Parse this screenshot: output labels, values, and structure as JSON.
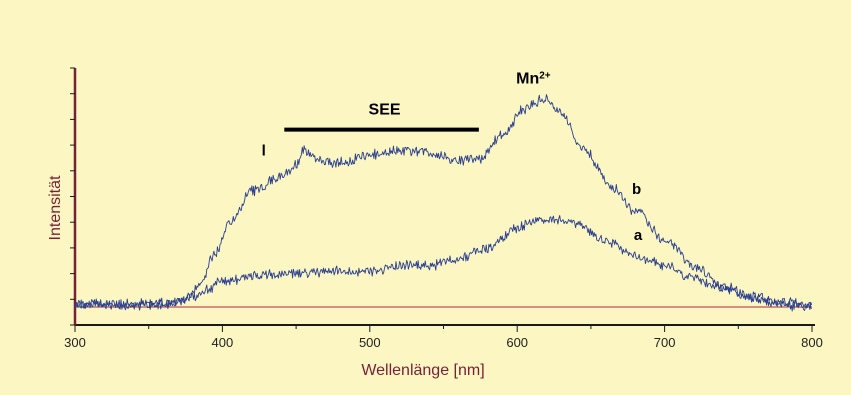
{
  "chart_data": {
    "type": "line",
    "title": "",
    "xlabel": "Wellenlänge [nm]",
    "ylabel": "Intensität",
    "xlim": [
      300,
      800
    ],
    "xticks": [
      300,
      400,
      500,
      600,
      700,
      800
    ],
    "ylim": [
      0,
      100
    ],
    "y_tick_count": 11,
    "baseline_y": 7,
    "grid": false,
    "legend": "none",
    "series": [
      {
        "name": "a",
        "color": "#2b3f8f",
        "x": [
          300,
          350,
          370,
          380,
          390,
          400,
          420,
          450,
          480,
          500,
          520,
          540,
          560,
          580,
          600,
          615,
          625,
          640,
          660,
          680,
          700,
          720,
          740,
          760,
          780,
          800
        ],
        "y": [
          8,
          8,
          9,
          11,
          14,
          17,
          19,
          20,
          21,
          21,
          23,
          23,
          26,
          30,
          38,
          41,
          41,
          39,
          33,
          27,
          23,
          18,
          14,
          11,
          9,
          8
        ]
      },
      {
        "name": "b",
        "color": "#2b3f8f",
        "x": [
          300,
          360,
          375,
          385,
          395,
          405,
          420,
          440,
          450,
          455,
          465,
          480,
          500,
          520,
          540,
          560,
          575,
          590,
          605,
          618,
          630,
          645,
          665,
          680,
          700,
          720,
          740,
          760,
          780,
          800
        ],
        "y": [
          8,
          8,
          10,
          16,
          28,
          40,
          52,
          58,
          62,
          68,
          64,
          63,
          66,
          68,
          67,
          64,
          65,
          74,
          84,
          88,
          82,
          68,
          53,
          44,
          33,
          23,
          15,
          10,
          8,
          7
        ]
      }
    ],
    "annotations": [
      {
        "text": "a",
        "x": 682,
        "y": 33
      },
      {
        "text": "b",
        "x": 681,
        "y": 51
      },
      {
        "text": "l",
        "x": 428,
        "y": 66
      },
      {
        "text": "Mn",
        "sup": "2+",
        "x": 611,
        "y": 94
      },
      {
        "text": "SEE",
        "x": 510,
        "y": 82
      }
    ],
    "range_bar": {
      "label": "SEE",
      "x_start": 442,
      "x_end": 574,
      "y": 76
    }
  },
  "colors": {
    "background": "#fbf6c2",
    "curve": "#2b3f8f",
    "axis": "#1a1a1a",
    "y_axis": "#7a1f3a",
    "baseline": "#b0263f",
    "axis_title": "#7a1f3a"
  }
}
